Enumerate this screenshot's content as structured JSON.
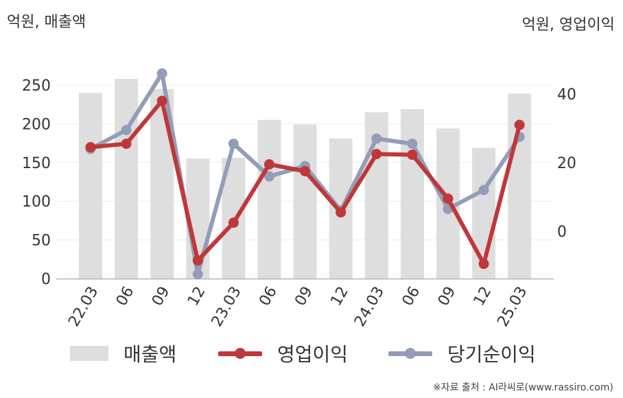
{
  "axis_labels": {
    "left": "억원, 매출액",
    "right": "억원, 영업이익"
  },
  "source": "※자료 출처 : AI라씨로(www.rassiro.com)",
  "colors": {
    "revenue": "#dedede",
    "operating_profit": "#c0373a",
    "net_income": "#929db8"
  },
  "chart_data": {
    "type": "bar",
    "categories": [
      "22.03",
      "06",
      "09",
      "12",
      "23.03",
      "06",
      "09",
      "12",
      "24.03",
      "06",
      "09",
      "12",
      "25.03"
    ],
    "series": [
      {
        "name": "매출액",
        "type": "bar",
        "axis": "left",
        "values": [
          240,
          258,
          245,
          155,
          156,
          205,
          199,
          181,
          215,
          219,
          194,
          169,
          239
        ]
      },
      {
        "name": "영업이익",
        "type": "line",
        "axis": "right",
        "values": [
          24.5,
          25.5,
          38,
          -8.5,
          2.5,
          19.5,
          17.5,
          5.5,
          22.5,
          22.3,
          9.5,
          -9.5,
          31
        ]
      },
      {
        "name": "당기순이익",
        "type": "line",
        "axis": "right",
        "values": [
          24,
          29.5,
          46,
          -12.5,
          25.5,
          16,
          19,
          6,
          27,
          25.5,
          6.5,
          12,
          27.5
        ]
      }
    ],
    "y_left": {
      "range": [
        0,
        250
      ],
      "ticks": [
        0,
        50,
        100,
        150,
        200,
        250
      ]
    },
    "y_right": {
      "range": [
        0,
        40
      ],
      "ticks": [
        0,
        20,
        40
      ]
    },
    "grid": true,
    "legend_position": "bottom"
  }
}
